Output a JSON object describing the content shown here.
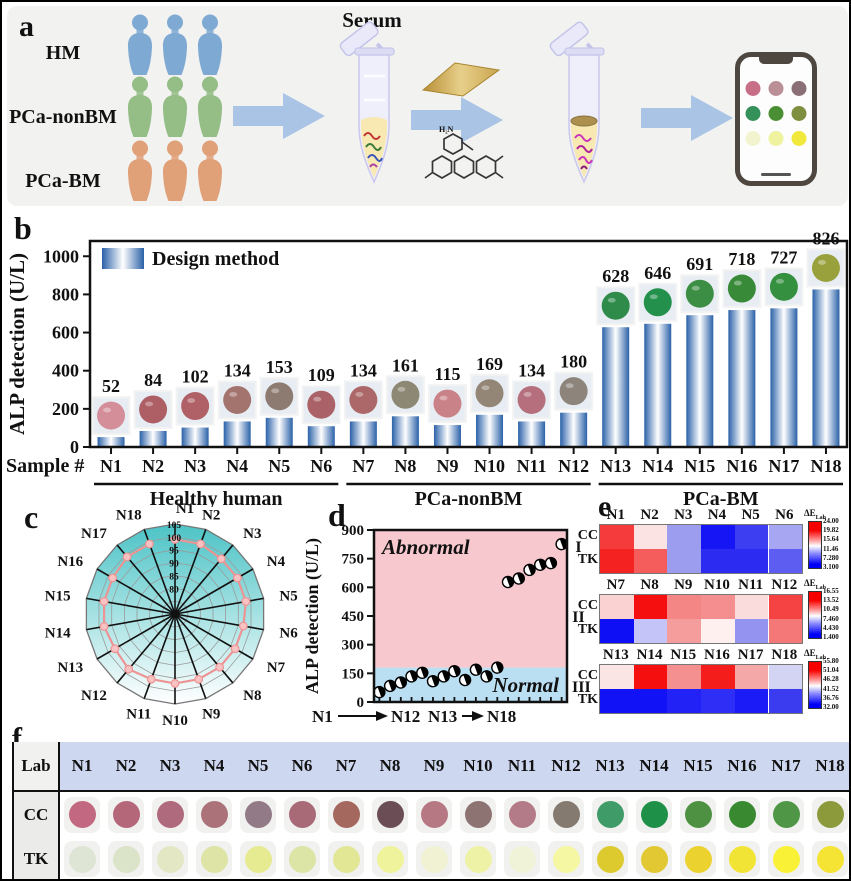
{
  "figure": {
    "panel_labels": {
      "a": "a",
      "b": "b",
      "c": "c",
      "d": "d",
      "e": "e",
      "f": "f"
    }
  },
  "panel_a": {
    "groups": [
      {
        "label": "HM",
        "color": "#7ea9d2"
      },
      {
        "label": "PCa-nonBM",
        "color": "#95bd86"
      },
      {
        "label": "PCa-BM",
        "color": "#e0a078"
      }
    ],
    "serum_label": "Serum",
    "molecule_label": "H₂N",
    "phone_dots": [
      [
        "#c76f87",
        "#bb8f96",
        "#8a6f76"
      ],
      [
        "#35915a",
        "#4b8f35",
        "#7e9040"
      ],
      [
        "#f2f4cf",
        "#eff3a0",
        "#f0e83a"
      ]
    ]
  },
  "chart_data": [
    {
      "id": "b",
      "type": "bar",
      "ylabel": "ALP detection (U/L)",
      "xlabel": "Sample #",
      "legend": "Design method",
      "ylim": [
        0,
        1080
      ],
      "yticks": [
        0,
        200,
        400,
        600,
        800,
        1000
      ],
      "categories": [
        "N1",
        "N2",
        "N3",
        "N4",
        "N5",
        "N6",
        "N7",
        "N8",
        "N9",
        "N10",
        "N11",
        "N12",
        "N13",
        "N14",
        "N15",
        "N16",
        "N17",
        "N18"
      ],
      "values": [
        52,
        84,
        102,
        134,
        153,
        109,
        134,
        161,
        115,
        169,
        134,
        180,
        628,
        646,
        691,
        718,
        727,
        826
      ],
      "bar_color": "#2a61a8",
      "well_colors": [
        "#d48e99",
        "#ae5f66",
        "#b06168",
        "#a3736e",
        "#8d7b71",
        "#aa6268",
        "#ac6868",
        "#8d8873",
        "#c98287",
        "#948677",
        "#b66f7d",
        "#8d847b",
        "#2e8b4a",
        "#23904c",
        "#3d8e45",
        "#388a39",
        "#35903f",
        "#99a13c"
      ],
      "groups": [
        {
          "label": "Healthy human",
          "start": 0,
          "end": 5
        },
        {
          "label": "PCa-nonBM",
          "start": 6,
          "end": 11
        },
        {
          "label": "PCa-BM",
          "start": 12,
          "end": 17
        }
      ]
    },
    {
      "id": "c",
      "type": "radar",
      "categories": [
        "N1",
        "N2",
        "N3",
        "N4",
        "N5",
        "N6",
        "N7",
        "N8",
        "N9",
        "N10",
        "N11",
        "N12",
        "N13",
        "N14",
        "N15",
        "N16",
        "N17",
        "N18"
      ],
      "values": [
        99,
        99,
        98,
        98,
        98,
        97,
        97,
        97,
        97,
        97,
        97,
        98,
        97,
        98,
        98,
        98,
        99,
        99
      ],
      "rmin": 70,
      "rmax": 105,
      "rticks": [
        105,
        100,
        95,
        90,
        85,
        80
      ],
      "fill_top": "#4cc3c6",
      "fill_bottom": "#ffffff",
      "line_color": "#ee9393",
      "marker_fill": "#f8c2c2"
    },
    {
      "id": "d",
      "type": "scatter",
      "ylabel": "ALP detection (U/L)",
      "ylim": [
        0,
        900
      ],
      "yticks": [
        0,
        150,
        300,
        450,
        600,
        750,
        900
      ],
      "values": [
        52,
        84,
        102,
        134,
        153,
        109,
        134,
        161,
        115,
        169,
        134,
        180,
        628,
        646,
        691,
        718,
        727,
        826
      ],
      "threshold": 180,
      "abnormal": {
        "label": "Abnormal",
        "color": "#f7c9ce",
        "text_color": "#e8252f"
      },
      "normal": {
        "label": "Normal",
        "color": "#badef2",
        "text_color": "#111111"
      },
      "x_annotations": [
        "N1",
        "N12",
        "N13",
        "N18"
      ]
    },
    {
      "id": "e-I",
      "type": "heatmap",
      "group_label": "I",
      "categories": [
        "N1",
        "N2",
        "N3",
        "N4",
        "N5",
        "N6"
      ],
      "rows": [
        "CC",
        "TK"
      ],
      "cell_colors": [
        [
          "#f53b3b",
          "#fbe3e3",
          "#9d9df0",
          "#1515f5",
          "#3d3df2",
          "#a6a6f2"
        ],
        [
          "#f52222",
          "#f55d5d",
          "#9d9df0",
          "#2b2bf2",
          "#2b2bf2",
          "#5d5df2"
        ]
      ],
      "colorbar_title": "ΔE",
      "colorbar_sub": "Lab",
      "colorbar_ticks": [
        "24.00",
        "19.82",
        "15.64",
        "11.46",
        "7.280",
        "3.100"
      ]
    },
    {
      "id": "e-II",
      "type": "heatmap",
      "group_label": "II",
      "categories": [
        "N7",
        "N8",
        "N9",
        "N10",
        "N11",
        "N12"
      ],
      "rows": [
        "CC",
        "TK"
      ],
      "cell_colors": [
        [
          "#fad2d2",
          "#f50f0f",
          "#f58686",
          "#f58e8e",
          "#fbdcdc",
          "#f54343"
        ],
        [
          "#0f0ff5",
          "#c4c4f8",
          "#f59c9c",
          "#fdf0ee",
          "#9494f0",
          "#f57878"
        ]
      ],
      "colorbar_title": "ΔE",
      "colorbar_sub": "Lab",
      "colorbar_ticks": [
        "16.55",
        "13.52",
        "10.49",
        "7.460",
        "4.430",
        "1.400"
      ]
    },
    {
      "id": "e-III",
      "type": "heatmap",
      "group_label": "III",
      "categories": [
        "N13",
        "N14",
        "N15",
        "N16",
        "N17",
        "N18"
      ],
      "rows": [
        "CC",
        "TK"
      ],
      "cell_colors": [
        [
          "#fbe4e4",
          "#f50f0f",
          "#f59090",
          "#f51c1c",
          "#f5a8a8",
          "#d3d3f3"
        ],
        [
          "#1212f7",
          "#1212f7",
          "#2222f7",
          "#2e2ef7",
          "#1b1bf7",
          "#3b3bf0"
        ]
      ],
      "colorbar_title": "ΔE",
      "colorbar_sub": "Lab",
      "colorbar_ticks": [
        "55.80",
        "51.04",
        "46.28",
        "41.52",
        "36.76",
        "32.00"
      ]
    }
  ],
  "panel_f": {
    "header": [
      "Lab",
      "N1",
      "N2",
      "N3",
      "N4",
      "N5",
      "N6",
      "N7",
      "N8",
      "N9",
      "N10",
      "N11",
      "N12",
      "N13",
      "N14",
      "N15",
      "N16",
      "N17",
      "N18"
    ],
    "rows": [
      {
        "label": "CC",
        "dots": [
          "#c26880",
          "#b5677a",
          "#b06a7e",
          "#ab7379",
          "#927a87",
          "#a86a77",
          "#a4685f",
          "#6b4e55",
          "#b67883",
          "#8d7472",
          "#b37a87",
          "#857a70",
          "#3f9c68",
          "#1f9048",
          "#4f9142",
          "#398931",
          "#4f9746",
          "#8c9a3b"
        ]
      },
      {
        "label": "TK",
        "dots": [
          "#dfe5d5",
          "#dbe3c9",
          "#e4e7c4",
          "#dde4a5",
          "#e6ea91",
          "#dce4a6",
          "#e1e795",
          "#eff39c",
          "#f0f2d3",
          "#eef2a6",
          "#f0f3d8",
          "#f5f7a2",
          "#ddca2f",
          "#e2c833",
          "#ecd22f",
          "#f2e434",
          "#f9f135",
          "#f6e435"
        ]
      }
    ]
  }
}
